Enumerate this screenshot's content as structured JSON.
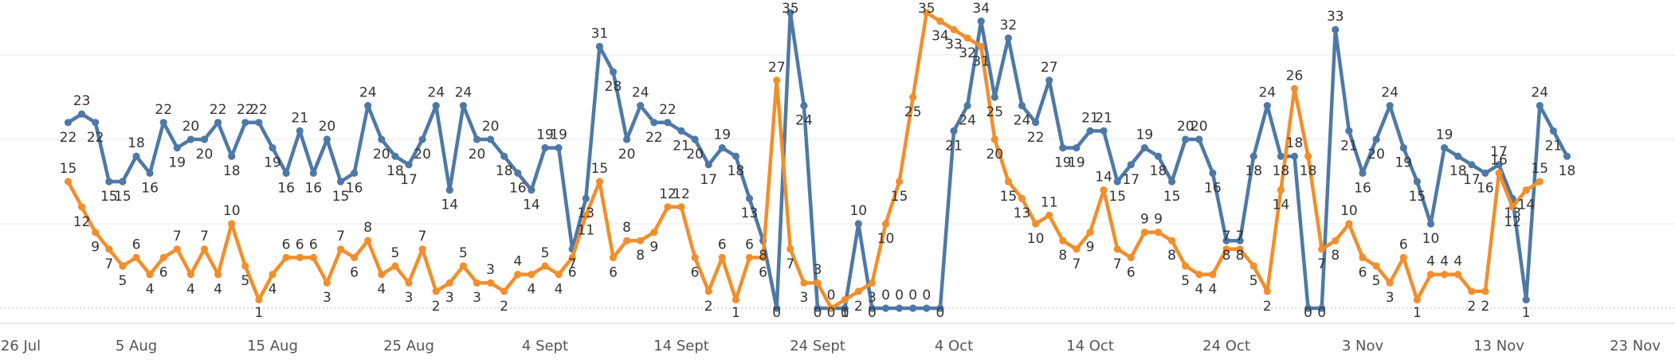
{
  "chart_data": {
    "type": "line",
    "x_start": "2023-07-26",
    "x_ticks": [
      "26 Jul",
      "5 Aug",
      "15 Aug",
      "25 Aug",
      "4 Sept",
      "14 Sept",
      "24 Sept",
      "4 Oct",
      "14 Oct",
      "24 Oct",
      "3 Nov",
      "13 Nov",
      "23 Nov"
    ],
    "y_range": [
      0,
      35
    ],
    "grid": true,
    "series": [
      {
        "color": "#4e79a7",
        "points": [
          [
            "2023-07-31",
            22
          ],
          [
            "2023-08-01",
            23
          ],
          [
            "2023-08-02",
            22
          ],
          [
            "2023-08-03",
            15
          ],
          [
            "2023-08-04",
            15
          ],
          [
            "2023-08-05",
            18
          ],
          [
            "2023-08-06",
            16
          ],
          [
            "2023-08-07",
            22
          ],
          [
            "2023-08-08",
            19
          ],
          [
            "2023-08-09",
            20
          ],
          [
            "2023-08-10",
            20
          ],
          [
            "2023-08-11",
            22
          ],
          [
            "2023-08-12",
            18
          ],
          [
            "2023-08-13",
            22
          ],
          [
            "2023-08-14",
            22
          ],
          [
            "2023-08-15",
            19
          ],
          [
            "2023-08-16",
            16
          ],
          [
            "2023-08-17",
            21
          ],
          [
            "2023-08-18",
            16
          ],
          [
            "2023-08-19",
            20
          ],
          [
            "2023-08-20",
            15
          ],
          [
            "2023-08-21",
            16
          ],
          [
            "2023-08-22",
            24
          ],
          [
            "2023-08-23",
            20
          ],
          [
            "2023-08-24",
            18
          ],
          [
            "2023-08-25",
            17
          ],
          [
            "2023-08-26",
            20
          ],
          [
            "2023-08-27",
            24
          ],
          [
            "2023-08-28",
            14
          ],
          [
            "2023-08-29",
            24
          ],
          [
            "2023-08-30",
            20
          ],
          [
            "2023-08-31",
            20
          ],
          [
            "2023-09-01",
            18
          ],
          [
            "2023-09-02",
            16
          ],
          [
            "2023-09-03",
            14
          ],
          [
            "2023-09-04",
            19
          ],
          [
            "2023-09-05",
            19
          ],
          [
            "2023-09-06",
            7
          ],
          [
            "2023-09-07",
            13
          ],
          [
            "2023-09-08",
            31
          ],
          [
            "2023-09-09",
            28
          ],
          [
            "2023-09-10",
            20
          ],
          [
            "2023-09-11",
            24
          ],
          [
            "2023-09-12",
            22
          ],
          [
            "2023-09-13",
            22
          ],
          [
            "2023-09-14",
            21
          ],
          [
            "2023-09-15",
            20
          ],
          [
            "2023-09-16",
            17
          ],
          [
            "2023-09-17",
            19
          ],
          [
            "2023-09-18",
            18
          ],
          [
            "2023-09-19",
            13
          ],
          [
            "2023-09-20",
            8
          ],
          [
            "2023-09-21",
            0
          ],
          [
            "2023-09-22",
            35
          ],
          [
            "2023-09-23",
            24
          ],
          [
            "2023-09-24",
            0
          ],
          [
            "2023-09-25",
            0
          ],
          [
            "2023-09-26",
            0
          ],
          [
            "2023-09-27",
            10
          ],
          [
            "2023-09-28",
            0
          ],
          [
            "2023-09-29",
            0
          ],
          [
            "2023-09-30",
            0
          ],
          [
            "2023-10-01",
            0
          ],
          [
            "2023-10-02",
            0
          ],
          [
            "2023-10-03",
            0
          ],
          [
            "2023-10-04",
            21
          ],
          [
            "2023-10-05",
            24
          ],
          [
            "2023-10-06",
            34
          ],
          [
            "2023-10-07",
            25
          ],
          [
            "2023-10-08",
            32
          ],
          [
            "2023-10-09",
            24
          ],
          [
            "2023-10-10",
            22
          ],
          [
            "2023-10-11",
            27
          ],
          [
            "2023-10-12",
            19
          ],
          [
            "2023-10-13",
            19
          ],
          [
            "2023-10-14",
            21
          ],
          [
            "2023-10-15",
            21
          ],
          [
            "2023-10-16",
            15
          ],
          [
            "2023-10-17",
            17
          ],
          [
            "2023-10-18",
            19
          ],
          [
            "2023-10-19",
            18
          ],
          [
            "2023-10-20",
            15
          ],
          [
            "2023-10-21",
            20
          ],
          [
            "2023-10-22",
            20
          ],
          [
            "2023-10-23",
            16
          ],
          [
            "2023-10-24",
            8
          ],
          [
            "2023-10-25",
            8
          ],
          [
            "2023-10-26",
            18
          ],
          [
            "2023-10-27",
            24
          ],
          [
            "2023-10-28",
            18
          ],
          [
            "2023-10-29",
            18
          ],
          [
            "2023-10-30",
            0
          ],
          [
            "2023-10-31",
            0
          ],
          [
            "2023-11-01",
            33
          ],
          [
            "2023-11-02",
            21
          ],
          [
            "2023-11-03",
            16
          ],
          [
            "2023-11-04",
            20
          ],
          [
            "2023-11-05",
            24
          ],
          [
            "2023-11-06",
            19
          ],
          [
            "2023-11-07",
            15
          ],
          [
            "2023-11-08",
            10
          ],
          [
            "2023-11-09",
            19
          ],
          [
            "2023-11-10",
            18
          ],
          [
            "2023-11-11",
            17
          ],
          [
            "2023-11-12",
            16
          ],
          [
            "2023-11-13",
            17
          ],
          [
            "2023-11-14",
            13
          ],
          [
            "2023-11-15",
            1
          ],
          [
            "2023-11-16",
            24
          ],
          [
            "2023-11-17",
            21
          ],
          [
            "2023-11-18",
            18
          ]
        ]
      },
      {
        "color": "#f28e2b",
        "points": [
          [
            "2023-07-31",
            15
          ],
          [
            "2023-08-01",
            12
          ],
          [
            "2023-08-02",
            9
          ],
          [
            "2023-08-03",
            7
          ],
          [
            "2023-08-04",
            5
          ],
          [
            "2023-08-05",
            6
          ],
          [
            "2023-08-06",
            4
          ],
          [
            "2023-08-07",
            6
          ],
          [
            "2023-08-08",
            7
          ],
          [
            "2023-08-09",
            4
          ],
          [
            "2023-08-10",
            7
          ],
          [
            "2023-08-11",
            4
          ],
          [
            "2023-08-12",
            10
          ],
          [
            "2023-08-13",
            5
          ],
          [
            "2023-08-14",
            1
          ],
          [
            "2023-08-15",
            4
          ],
          [
            "2023-08-16",
            6
          ],
          [
            "2023-08-17",
            6
          ],
          [
            "2023-08-18",
            6
          ],
          [
            "2023-08-19",
            3
          ],
          [
            "2023-08-20",
            7
          ],
          [
            "2023-08-21",
            6
          ],
          [
            "2023-08-22",
            8
          ],
          [
            "2023-08-23",
            4
          ],
          [
            "2023-08-24",
            5
          ],
          [
            "2023-08-25",
            3
          ],
          [
            "2023-08-26",
            7
          ],
          [
            "2023-08-27",
            2
          ],
          [
            "2023-08-28",
            3
          ],
          [
            "2023-08-29",
            5
          ],
          [
            "2023-08-30",
            3
          ],
          [
            "2023-08-31",
            3
          ],
          [
            "2023-09-01",
            2
          ],
          [
            "2023-09-02",
            4
          ],
          [
            "2023-09-03",
            4
          ],
          [
            "2023-09-04",
            5
          ],
          [
            "2023-09-05",
            4
          ],
          [
            "2023-09-06",
            6
          ],
          [
            "2023-09-07",
            11
          ],
          [
            "2023-09-08",
            15
          ],
          [
            "2023-09-09",
            6
          ],
          [
            "2023-09-10",
            8
          ],
          [
            "2023-09-11",
            8
          ],
          [
            "2023-09-12",
            9
          ],
          [
            "2023-09-13",
            12
          ],
          [
            "2023-09-14",
            12
          ],
          [
            "2023-09-15",
            6
          ],
          [
            "2023-09-16",
            2
          ],
          [
            "2023-09-17",
            6
          ],
          [
            "2023-09-18",
            1
          ],
          [
            "2023-09-19",
            6
          ],
          [
            "2023-09-20",
            6
          ],
          [
            "2023-09-21",
            27
          ],
          [
            "2023-09-22",
            7
          ],
          [
            "2023-09-23",
            3
          ],
          [
            "2023-09-24",
            3
          ],
          [
            "2023-09-25",
            0
          ],
          [
            "2023-09-26",
            1
          ],
          [
            "2023-09-27",
            2
          ],
          [
            "2023-09-28",
            3
          ],
          [
            "2023-09-29",
            10
          ],
          [
            "2023-09-30",
            15
          ],
          [
            "2023-10-01",
            25
          ],
          [
            "2023-10-02",
            35
          ],
          [
            "2023-10-03",
            34
          ],
          [
            "2023-10-04",
            33
          ],
          [
            "2023-10-05",
            32
          ],
          [
            "2023-10-06",
            31
          ],
          [
            "2023-10-07",
            20
          ],
          [
            "2023-10-08",
            15
          ],
          [
            "2023-10-09",
            13
          ],
          [
            "2023-10-10",
            10
          ],
          [
            "2023-10-11",
            11
          ],
          [
            "2023-10-12",
            8
          ],
          [
            "2023-10-13",
            7
          ],
          [
            "2023-10-14",
            9
          ],
          [
            "2023-10-15",
            14
          ],
          [
            "2023-10-16",
            7
          ],
          [
            "2023-10-17",
            6
          ],
          [
            "2023-10-18",
            9
          ],
          [
            "2023-10-19",
            9
          ],
          [
            "2023-10-20",
            8
          ],
          [
            "2023-10-21",
            5
          ],
          [
            "2023-10-22",
            4
          ],
          [
            "2023-10-23",
            4
          ],
          [
            "2023-10-24",
            7
          ],
          [
            "2023-10-25",
            7
          ],
          [
            "2023-10-26",
            5
          ],
          [
            "2023-10-27",
            2
          ],
          [
            "2023-10-28",
            14
          ],
          [
            "2023-10-29",
            26
          ],
          [
            "2023-10-30",
            18
          ],
          [
            "2023-10-31",
            7
          ],
          [
            "2023-11-01",
            8
          ],
          [
            "2023-11-02",
            10
          ],
          [
            "2023-11-03",
            6
          ],
          [
            "2023-11-04",
            5
          ],
          [
            "2023-11-05",
            3
          ],
          [
            "2023-11-06",
            6
          ],
          [
            "2023-11-07",
            1
          ],
          [
            "2023-11-08",
            4
          ],
          [
            "2023-11-09",
            4
          ],
          [
            "2023-11-10",
            4
          ],
          [
            "2023-11-11",
            2
          ],
          [
            "2023-11-12",
            2
          ],
          [
            "2023-11-13",
            16
          ],
          [
            "2023-11-14",
            12
          ],
          [
            "2023-11-15",
            14
          ],
          [
            "2023-11-16",
            15
          ]
        ]
      }
    ]
  }
}
